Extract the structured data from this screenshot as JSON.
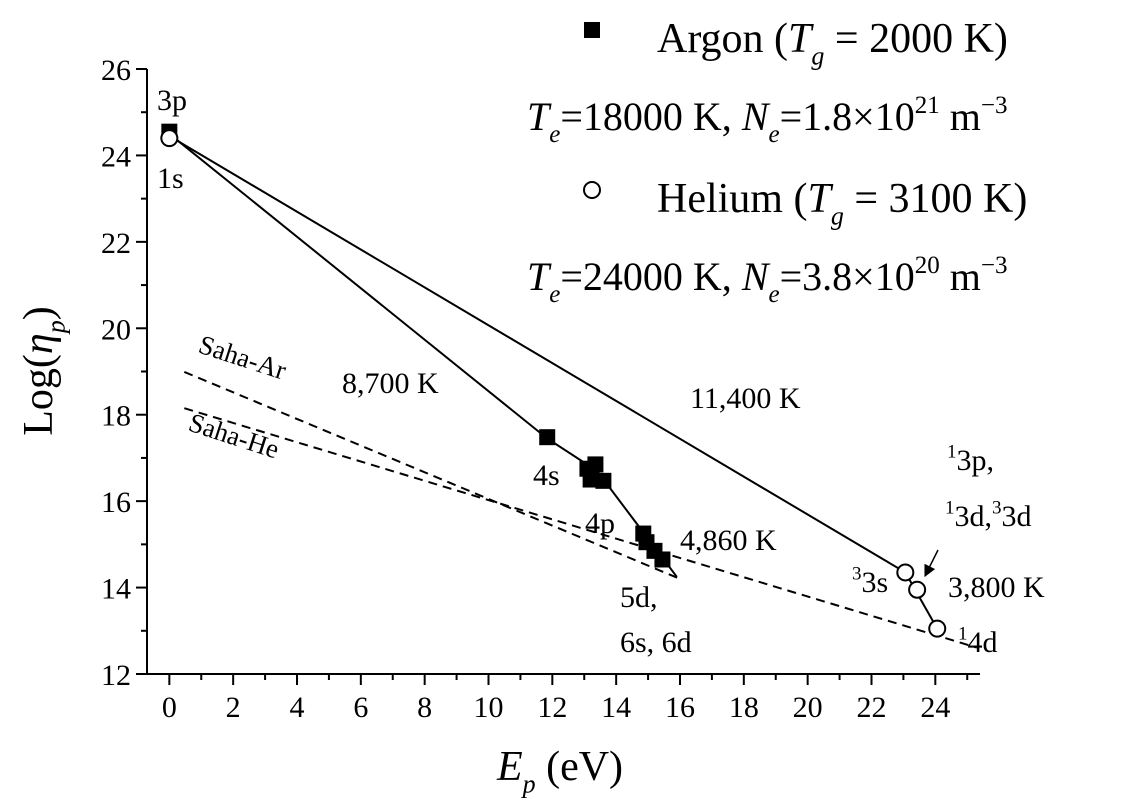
{
  "chart_data": {
    "type": "scatter",
    "xlabel": [
      {
        "text": "E",
        "style": "i"
      },
      {
        "text": "p",
        "style": "isub"
      },
      {
        "text": " (eV)"
      }
    ],
    "ylabel": [
      {
        "text": "Log("
      },
      {
        "text": "η",
        "style": "i"
      },
      {
        "text": "p",
        "style": "isub"
      },
      {
        "text": ")"
      }
    ],
    "xlim": [
      -0.7,
      25.4
    ],
    "ylim": [
      12,
      26
    ],
    "xticks": [
      0,
      2,
      4,
      6,
      8,
      10,
      12,
      14,
      16,
      18,
      20,
      22,
      24
    ],
    "xminorticks": [
      1,
      3,
      5,
      7,
      9,
      11,
      13,
      15,
      17,
      19,
      21,
      23,
      25
    ],
    "yticks": [
      12,
      14,
      16,
      18,
      20,
      22,
      24,
      26
    ],
    "yminorticks": [
      13,
      15,
      17,
      19,
      21,
      23,
      25
    ],
    "series": [
      {
        "name": [
          {
            "text": "Argon ("
          },
          {
            "text": "T",
            "style": "i"
          },
          {
            "text": "g",
            "style": "isub"
          },
          {
            "text": " = 2000 K)"
          }
        ],
        "conditions": [
          {
            "text": "T",
            "style": "i"
          },
          {
            "text": "e",
            "style": "isub"
          },
          {
            "text": "=18000 K, "
          },
          {
            "text": "N",
            "style": "i"
          },
          {
            "text": "e",
            "style": "isub"
          },
          {
            "text": "=1.8×10"
          },
          {
            "text": "21",
            "style": "sup"
          },
          {
            "text": " m"
          },
          {
            "text": "−3",
            "style": "sup"
          }
        ],
        "marker": "square",
        "color": "#000000",
        "x": [
          0,
          11.84,
          13.1,
          13.35,
          13.2,
          13.6,
          14.85,
          14.95,
          15.2,
          15.45
        ],
        "y": [
          24.55,
          17.48,
          16.75,
          16.85,
          16.5,
          16.47,
          15.25,
          15.05,
          14.85,
          14.65
        ]
      },
      {
        "name": [
          {
            "text": "Helium ("
          },
          {
            "text": "T",
            "style": "i"
          },
          {
            "text": "g",
            "style": "isub"
          },
          {
            "text": " = 3100 K)"
          }
        ],
        "conditions": [
          {
            "text": "T",
            "style": "i"
          },
          {
            "text": "e",
            "style": "isub"
          },
          {
            "text": "=24000 K, "
          },
          {
            "text": "N",
            "style": "i"
          },
          {
            "text": "e",
            "style": "isub"
          },
          {
            "text": "=3.8×10"
          },
          {
            "text": "20",
            "style": "sup"
          },
          {
            "text": " m"
          },
          {
            "text": "−3",
            "style": "sup"
          }
        ],
        "marker": "circle",
        "color": "#000000",
        "x": [
          0,
          23.06,
          23.43,
          24.06
        ],
        "y": [
          24.4,
          14.35,
          13.95,
          13.05
        ]
      }
    ],
    "lines": [
      {
        "style": "solid",
        "x": [
          0,
          11.84,
          13.4,
          15.9
        ],
        "y": [
          24.5,
          17.45,
          16.7,
          14.25
        ]
      },
      {
        "style": "solid",
        "x": [
          0,
          23.06,
          24.06
        ],
        "y": [
          24.45,
          14.35,
          13.05
        ]
      },
      {
        "style": "dashed",
        "x": [
          0.47,
          16.0
        ],
        "y": [
          18.99,
          14.2
        ]
      },
      {
        "style": "dashed",
        "x": [
          0.47,
          25.3
        ],
        "y": [
          18.15,
          12.61
        ]
      }
    ],
    "annotations": [
      [
        {
          "text": "3p"
        }
      ],
      [
        {
          "text": "1s"
        }
      ],
      [
        {
          "text": "Saha-Ar"
        }
      ],
      [
        {
          "text": "Saha-He"
        }
      ],
      [
        {
          "text": "8,700 K"
        }
      ],
      [
        {
          "text": "11,400 K"
        }
      ],
      [
        {
          "text": "4s"
        }
      ],
      [
        {
          "text": "4p"
        }
      ],
      [
        {
          "text": "4,860 K"
        }
      ],
      [
        {
          "text": "5d,"
        }
      ],
      [
        {
          "text": "6s, 6d"
        }
      ],
      [
        {
          "text": "1",
          "style": "sup"
        },
        {
          "text": "3p,"
        }
      ],
      [
        {
          "text": "1",
          "style": "sup"
        },
        {
          "text": "3d,"
        },
        {
          "text": "3",
          "style": "sup"
        },
        {
          "text": "3d"
        }
      ],
      [
        {
          "text": "3",
          "style": "sup"
        },
        {
          "text": "3s"
        }
      ],
      [
        {
          "text": "3,800 K"
        }
      ],
      [
        {
          "text": "1",
          "style": "sup"
        },
        {
          "text": "4d"
        }
      ]
    ]
  }
}
